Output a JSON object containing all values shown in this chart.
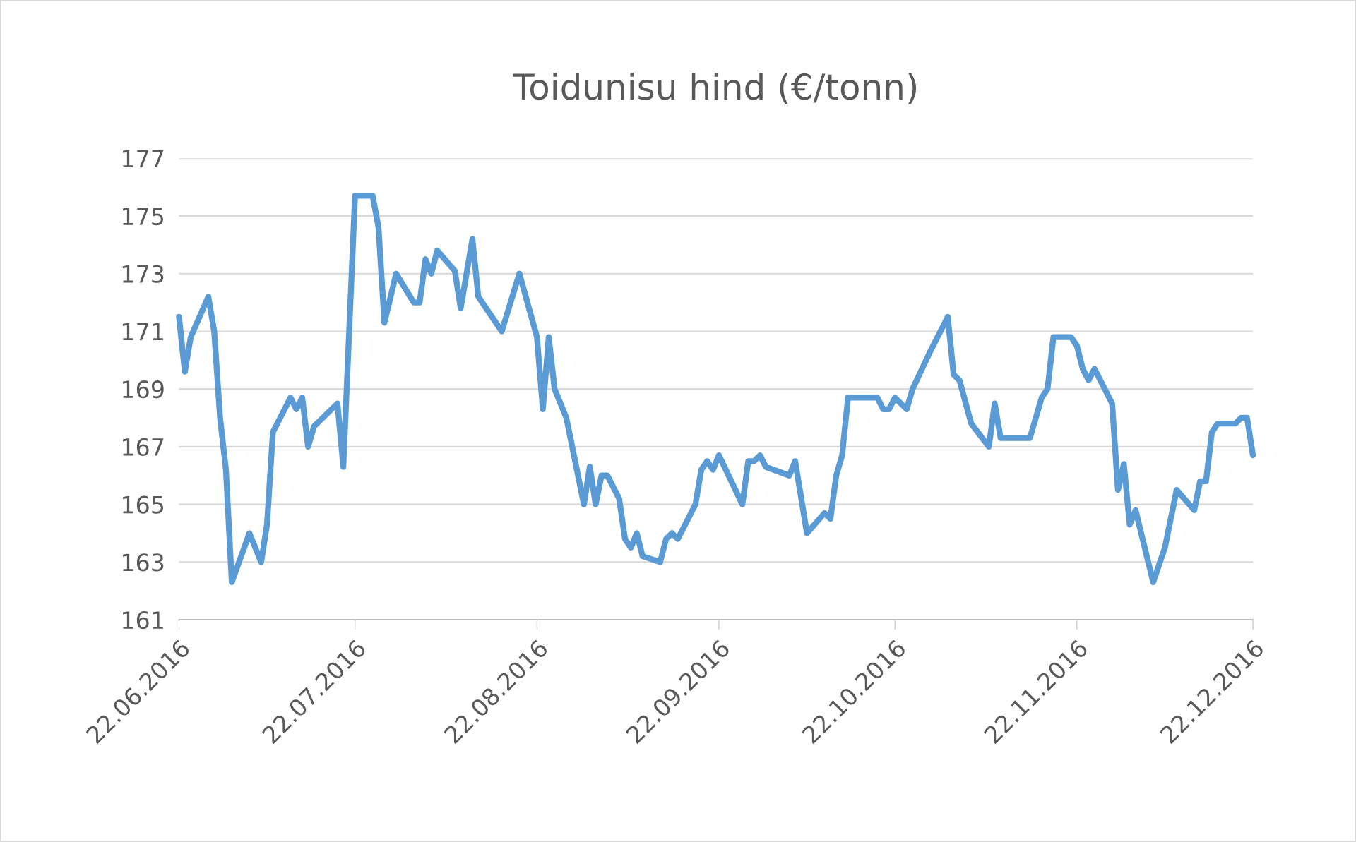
{
  "chart_data": {
    "type": "line",
    "title": "Toidunisu hind (€/tonn)",
    "x": [
      "2016-06-22",
      "2016-06-23",
      "2016-06-24",
      "2016-06-27",
      "2016-06-28",
      "2016-06-29",
      "2016-06-30",
      "2016-07-01",
      "2016-07-04",
      "2016-07-06",
      "2016-07-07",
      "2016-07-08",
      "2016-07-11",
      "2016-07-12",
      "2016-07-13",
      "2016-07-14",
      "2016-07-15",
      "2016-07-19",
      "2016-07-20",
      "2016-07-22",
      "2016-07-25",
      "2016-07-26",
      "2016-07-27",
      "2016-07-29",
      "2016-08-01",
      "2016-08-02",
      "2016-08-03",
      "2016-08-04",
      "2016-08-05",
      "2016-08-08",
      "2016-08-09",
      "2016-08-11",
      "2016-08-12",
      "2016-08-16",
      "2016-08-19",
      "2016-08-22",
      "2016-08-23",
      "2016-08-24",
      "2016-08-25",
      "2016-08-27",
      "2016-08-30",
      "2016-08-31",
      "2016-09-01",
      "2016-09-02",
      "2016-09-03",
      "2016-09-05",
      "2016-09-06",
      "2016-09-07",
      "2016-09-08",
      "2016-09-09",
      "2016-09-12",
      "2016-09-13",
      "2016-09-14",
      "2016-09-15",
      "2016-09-18",
      "2016-09-19",
      "2016-09-20",
      "2016-09-21",
      "2016-09-22",
      "2016-09-26",
      "2016-09-27",
      "2016-09-28",
      "2016-09-29",
      "2016-09-30",
      "2016-10-04",
      "2016-10-05",
      "2016-10-07",
      "2016-10-10",
      "2016-10-11",
      "2016-10-12",
      "2016-10-13",
      "2016-10-14",
      "2016-10-19",
      "2016-10-20",
      "2016-10-21",
      "2016-10-22",
      "2016-10-24",
      "2016-10-25",
      "2016-10-28",
      "2016-10-31",
      "2016-11-01",
      "2016-11-02",
      "2016-11-04",
      "2016-11-07",
      "2016-11-08",
      "2016-11-09",
      "2016-11-14",
      "2016-11-16",
      "2016-11-17",
      "2016-11-18",
      "2016-11-21",
      "2016-11-22",
      "2016-11-23",
      "2016-11-24",
      "2016-11-25",
      "2016-11-28",
      "2016-11-29",
      "2016-11-30",
      "2016-12-01",
      "2016-12-02",
      "2016-12-05",
      "2016-12-07",
      "2016-12-09",
      "2016-12-12",
      "2016-12-13",
      "2016-12-14",
      "2016-12-15",
      "2016-12-16",
      "2016-12-19",
      "2016-12-20",
      "2016-12-21",
      "2016-12-22"
    ],
    "series": [
      {
        "color": "#5b9bd5",
        "values": [
          171.5,
          169.6,
          170.8,
          172.2,
          171,
          168,
          166.2,
          162.3,
          164,
          163,
          164.3,
          167.5,
          168.7,
          168.3,
          168.7,
          167,
          167.7,
          168.5,
          166.3,
          175.7,
          175.7,
          174.6,
          171.3,
          173,
          172,
          172,
          173.5,
          173,
          173.8,
          173.1,
          171.8,
          174.2,
          172.2,
          171,
          173,
          170.8,
          168.3,
          170.8,
          169,
          168,
          165,
          166.3,
          165,
          166,
          166,
          165.2,
          163.8,
          163.5,
          164,
          163.2,
          163,
          163.8,
          164,
          163.8,
          165,
          166.2,
          166.5,
          166.2,
          166.7,
          165,
          166.5,
          166.5,
          166.7,
          166.3,
          166,
          166.5,
          164,
          164.7,
          164.5,
          166,
          166.7,
          168.7,
          168.7,
          168.3,
          168.3,
          168.7,
          168.3,
          169,
          170.3,
          171.5,
          169.5,
          169.3,
          167.8,
          167,
          168.5,
          167.3,
          167.3,
          168.7,
          169,
          170.8,
          170.8,
          170.5,
          169.7,
          169.3,
          169.7,
          168.5,
          165.5,
          166.4,
          164.3,
          164.8,
          162.3,
          163.5,
          165.5,
          164.8,
          165.8,
          165.8,
          167.5,
          167.8,
          167.8,
          168,
          168,
          166.7
        ]
      }
    ],
    "xlim": [
      "2016-06-22",
      "2016-12-22"
    ],
    "xticks": [
      {
        "value": "2016-06-22",
        "label": "22.06.2016"
      },
      {
        "value": "2016-07-22",
        "label": "22.07.2016"
      },
      {
        "value": "2016-08-22",
        "label": "22.08.2016"
      },
      {
        "value": "2016-09-22",
        "label": "22.09.2016"
      },
      {
        "value": "2016-10-22",
        "label": "22.10.2016"
      },
      {
        "value": "2016-11-22",
        "label": "22.11.2016"
      },
      {
        "value": "2016-12-22",
        "label": "22.12.2016"
      }
    ],
    "ylim": [
      161,
      177
    ],
    "yticks": [
      161,
      163,
      165,
      167,
      169,
      171,
      173,
      175,
      177
    ],
    "grid": "y",
    "marker": "none",
    "line_style": "solid"
  }
}
